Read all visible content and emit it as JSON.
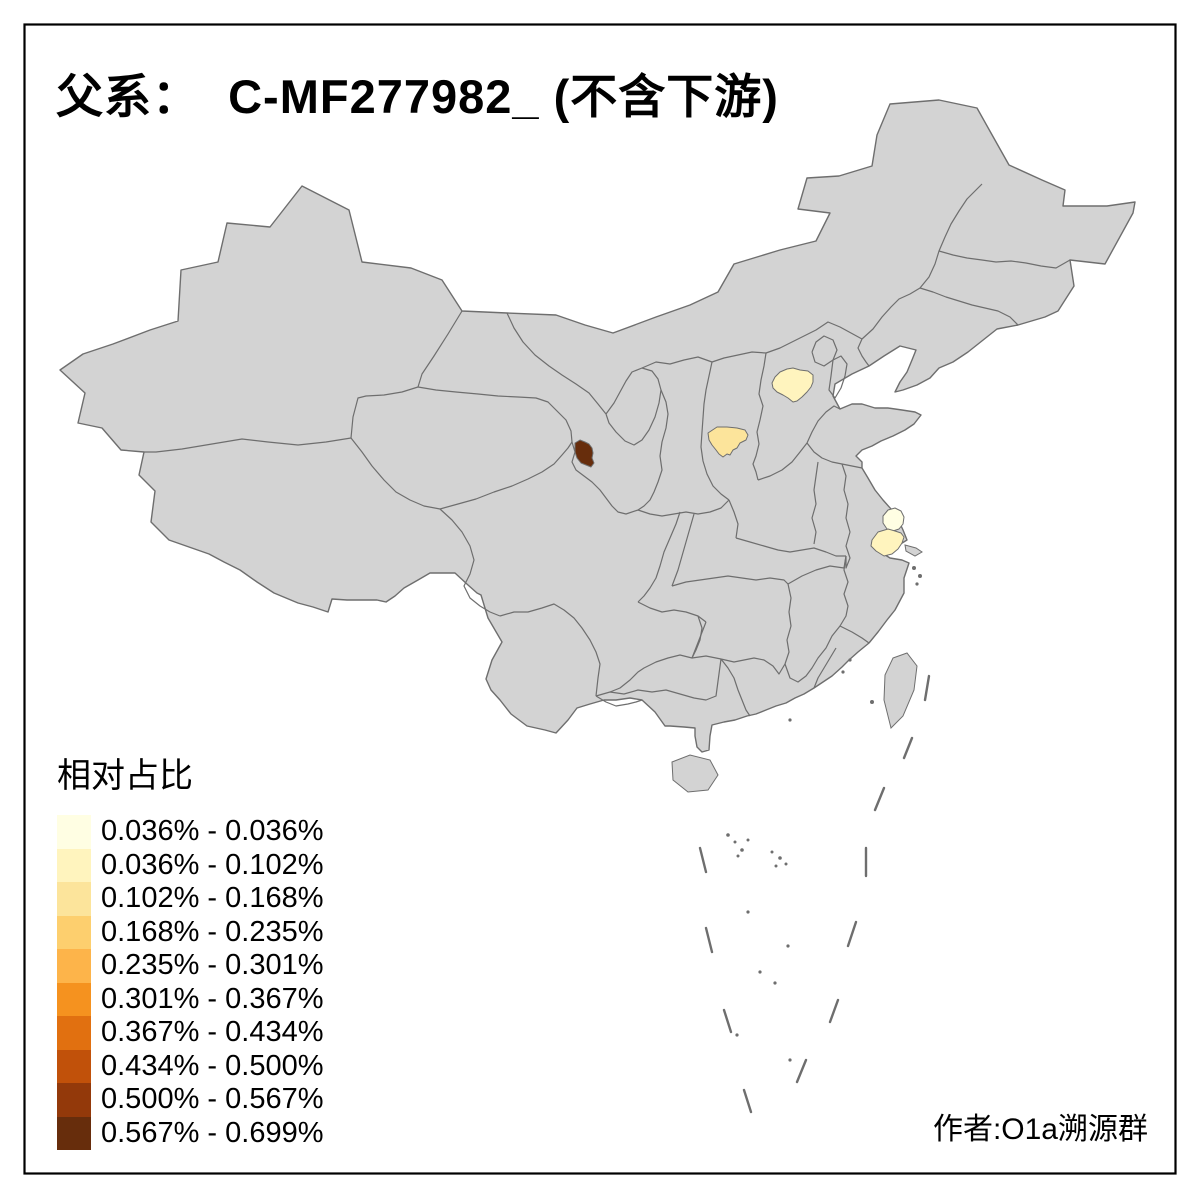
{
  "title": "父系：  C-MF277982_ (不含下游)",
  "attribution": "作者:O1a溯源群",
  "legend": {
    "title": "相对占比",
    "items": [
      {
        "label": "0.036% - 0.036%",
        "color": "#FFFEE3"
      },
      {
        "label": "0.036% - 0.102%",
        "color": "#FFF4BE"
      },
      {
        "label": "0.102% - 0.168%",
        "color": "#FCE49B"
      },
      {
        "label": "0.168% - 0.235%",
        "color": "#FDCF6E"
      },
      {
        "label": "0.235% - 0.301%",
        "color": "#FDB44A"
      },
      {
        "label": "0.301% - 0.367%",
        "color": "#F5921F"
      },
      {
        "label": "0.367% - 0.434%",
        "color": "#E17010"
      },
      {
        "label": "0.434% - 0.500%",
        "color": "#C1510A"
      },
      {
        "label": "0.500% - 0.567%",
        "color": "#93390A"
      },
      {
        "label": "0.567% - 0.699%",
        "color": "#672D0C"
      }
    ]
  },
  "map": {
    "land_color": "#D3D3D3",
    "border_color": "#6E6E6E",
    "background_color": "#FFFFFF",
    "frame_color": "#000000",
    "highlighted_regions": [
      {
        "id": "map-region-1",
        "legend_bin_index": 9
      },
      {
        "id": "map-region-2",
        "legend_bin_index": 2
      },
      {
        "id": "map-region-3",
        "legend_bin_index": 1
      },
      {
        "id": "map-region-4",
        "legend_bin_index": 0
      },
      {
        "id": "map-region-5",
        "legend_bin_index": 1
      }
    ]
  },
  "chart_data": {
    "type": "choropleth-map",
    "title": "父系：  C-MF277982_ (不含下游)",
    "legend_title": "相对占比",
    "bins": [
      "0.036% - 0.036%",
      "0.036% - 0.102%",
      "0.102% - 0.168%",
      "0.168% - 0.235%",
      "0.235% - 0.301%",
      "0.301% - 0.367%",
      "0.367% - 0.434%",
      "0.434% - 0.500%",
      "0.500% - 0.567%",
      "0.567% - 0.699%"
    ],
    "highlighted_region_bins": [
      "0.567% - 0.699%",
      "0.102% - 0.168%",
      "0.036% - 0.102%",
      "0.036% - 0.036%",
      "0.036% - 0.102%"
    ]
  }
}
